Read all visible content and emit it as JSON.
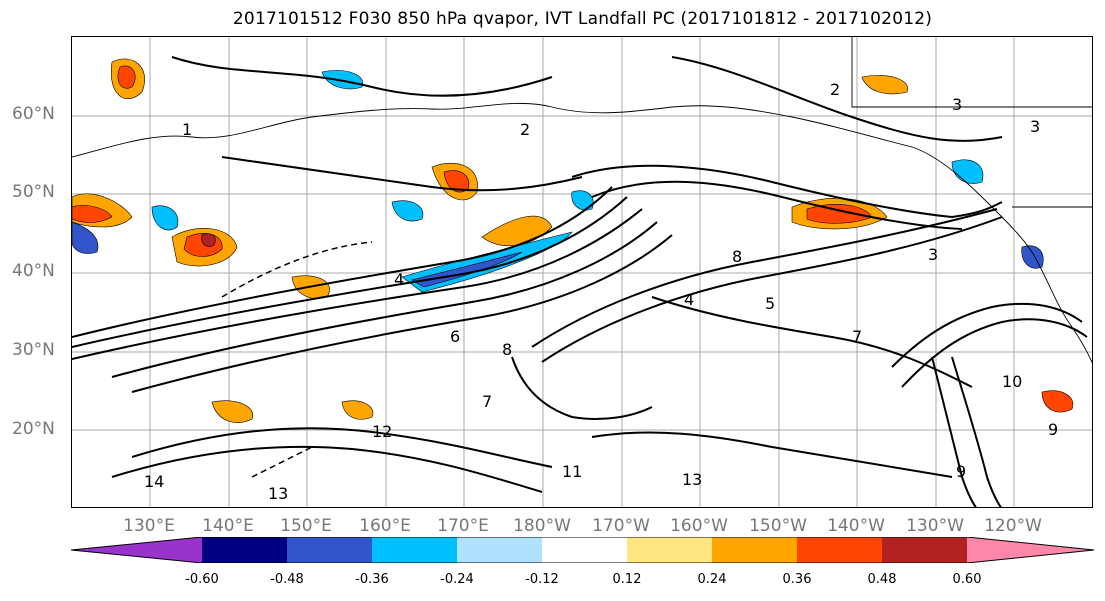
{
  "title": "2017101512 F030 850 hPa qvapor, IVT Landfall PC (2017101812 - 2017102012)",
  "lat_labels": [
    "60°N",
    "50°N",
    "40°N",
    "30°N",
    "20°N"
  ],
  "lon_labels": [
    "130°E",
    "140°E",
    "150°E",
    "160°E",
    "170°E",
    "180°W",
    "170°W",
    "160°W",
    "150°W",
    "140°W",
    "130°W",
    "120°W"
  ],
  "contour_labels": [
    "1",
    "2",
    "2",
    "3",
    "3",
    "3",
    "4",
    "4",
    "5",
    "6",
    "7",
    "7",
    "8",
    "8",
    "9",
    "9",
    "10",
    "11",
    "12",
    "13",
    "13",
    "14"
  ],
  "colorbar": {
    "ticks": [
      "-0.60",
      "-0.48",
      "-0.36",
      "-0.24",
      "-0.12",
      "0.12",
      "0.24",
      "0.36",
      "0.48",
      "0.60"
    ],
    "colors": [
      "#9933cc",
      "#000080",
      "#3355cc",
      "#00bfff",
      "#b0e2ff",
      "#ffffff",
      "#ffe680",
      "#ffa500",
      "#ff4500",
      "#b22222",
      "#ff88aa"
    ]
  }
}
